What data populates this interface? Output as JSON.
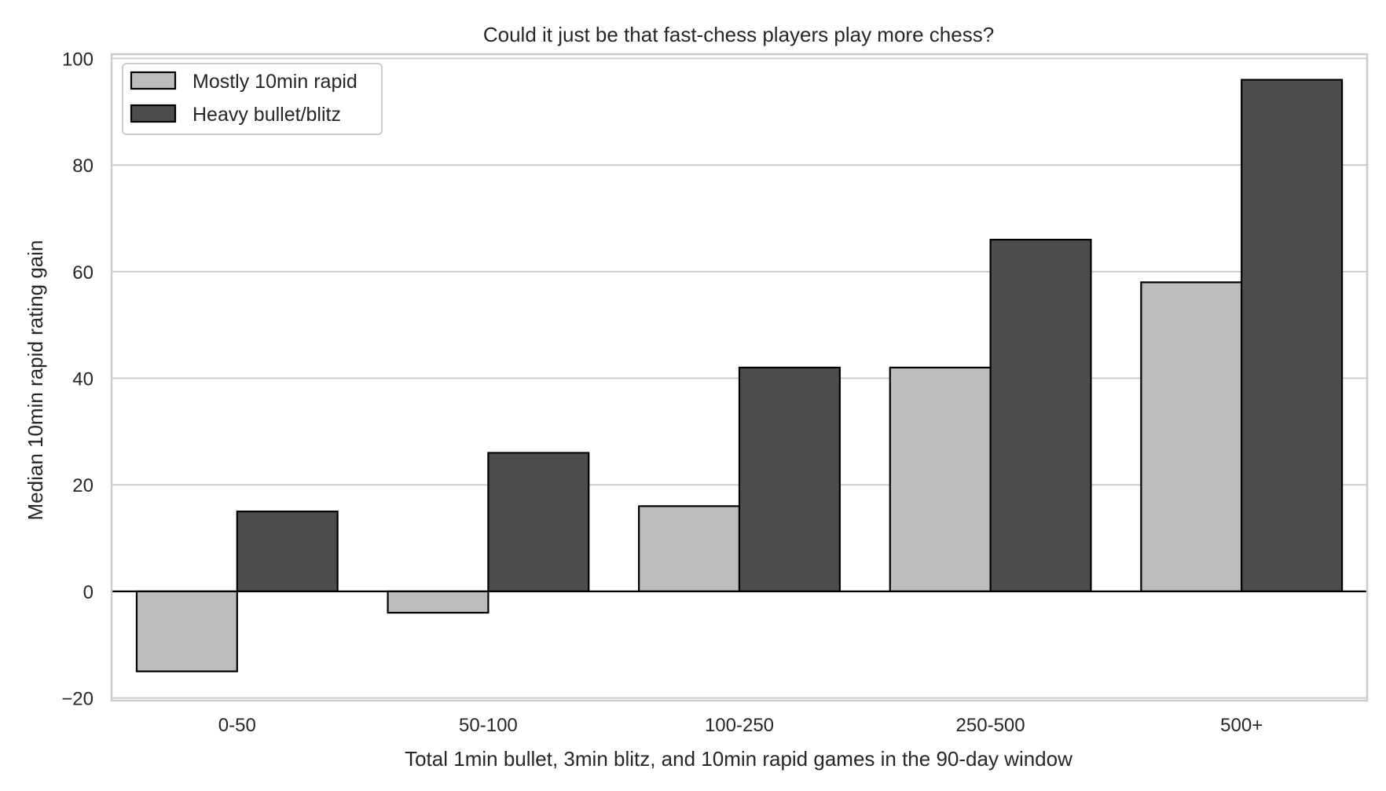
{
  "chart_data": {
    "type": "bar",
    "title": "Could it just be that fast-chess players play more chess?",
    "xlabel": "Total 1min bullet, 3min blitz, and 10min rapid games in the 90-day window",
    "ylabel": "Median 10min rapid rating gain",
    "categories": [
      "0-50",
      "50-100",
      "100-250",
      "250-500",
      "500+"
    ],
    "series": [
      {
        "name": "Mostly 10min rapid",
        "values": [
          -15,
          -4,
          16,
          42,
          58
        ],
        "color": "#bcbcbc"
      },
      {
        "name": "Heavy bullet/blitz",
        "values": [
          15,
          26,
          42,
          66,
          96
        ],
        "color": "#4d4d4d"
      }
    ],
    "ylim": [
      -20.5,
      100.8
    ],
    "yticks": [
      -20,
      0,
      20,
      40,
      60,
      80,
      100
    ],
    "ytick_labels": [
      "−20",
      "0",
      "20",
      "40",
      "60",
      "80",
      "100"
    ],
    "grid": true,
    "zero_line": true,
    "legend_position": "upper-left"
  }
}
